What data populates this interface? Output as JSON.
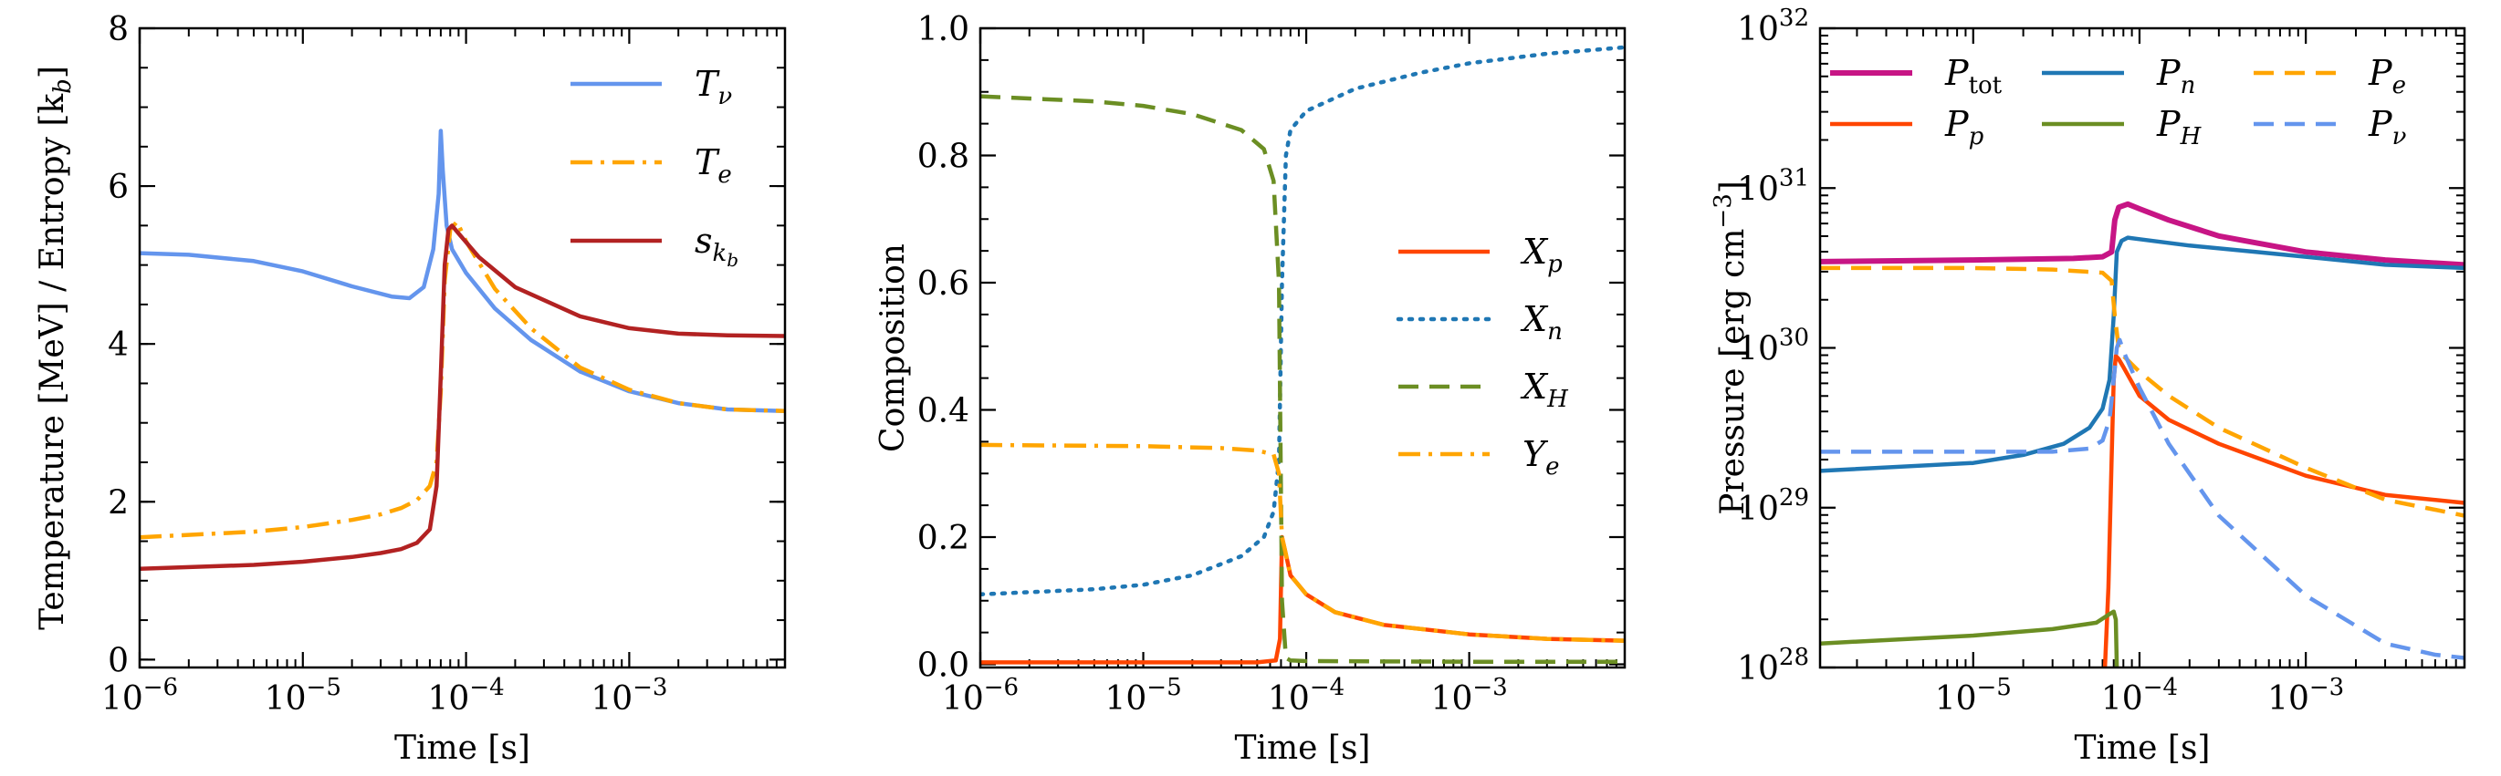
{
  "chart_data": [
    {
      "type": "line",
      "xlabel": "Time [s]",
      "ylabel": "Temperature [MeV] / Entropy [k",
      "ylabel_sub": "b",
      "ylabel_end": "]",
      "xscale": "log",
      "xlim": [
        1e-06,
        0.009
      ],
      "ylim": [
        -0.1,
        8
      ],
      "xticks": [
        {
          "v": 1e-06,
          "base": "10",
          "exp": "−6"
        },
        {
          "v": 1e-05,
          "base": "10",
          "exp": "−5"
        },
        {
          "v": 0.0001,
          "base": "10",
          "exp": "−4"
        },
        {
          "v": 0.001,
          "base": "10",
          "exp": "−3"
        }
      ],
      "yticks": [
        {
          "v": 0,
          "label": "0"
        },
        {
          "v": 2,
          "label": "2"
        },
        {
          "v": 4,
          "label": "4"
        },
        {
          "v": 6,
          "label": "6"
        },
        {
          "v": 8,
          "label": "8"
        }
      ],
      "legend_position": "upper right",
      "series": [
        {
          "name": "T",
          "sub": "ν",
          "color": "#6495ED",
          "dash": "solid",
          "x": [
            1e-06,
            2e-06,
            5e-06,
            1e-05,
            2e-05,
            3.5e-05,
            4.5e-05,
            5.5e-05,
            6.3e-05,
            6.8e-05,
            7e-05,
            7.2e-05,
            7.6e-05,
            8.2e-05,
            0.0001,
            0.00015,
            0.00025,
            0.0005,
            0.001,
            0.002,
            0.004,
            0.009
          ],
          "y": [
            5.15,
            5.13,
            5.05,
            4.92,
            4.73,
            4.6,
            4.58,
            4.72,
            5.2,
            5.9,
            6.7,
            6.2,
            5.5,
            5.2,
            4.9,
            4.45,
            4.05,
            3.65,
            3.4,
            3.25,
            3.17,
            3.15
          ]
        },
        {
          "name": "T",
          "sub": "e",
          "color": "#FFA500",
          "dash": "dashdot",
          "x": [
            1e-06,
            5e-06,
            1e-05,
            2e-05,
            3e-05,
            4e-05,
            5e-05,
            6e-05,
            6.6e-05,
            7e-05,
            7.4e-05,
            8e-05,
            8.8e-05,
            0.0001,
            0.00015,
            0.00025,
            0.0005,
            0.001,
            0.002,
            0.004,
            0.009
          ],
          "y": [
            1.55,
            1.62,
            1.68,
            1.77,
            1.84,
            1.92,
            2.02,
            2.2,
            2.5,
            3.4,
            4.8,
            5.45,
            5.55,
            5.3,
            4.7,
            4.2,
            3.7,
            3.42,
            3.25,
            3.17,
            3.15
          ]
        },
        {
          "name": "s",
          "sub": "k",
          "subsub": "b",
          "color": "#B22222",
          "dash": "solid",
          "x": [
            1e-06,
            5e-06,
            1e-05,
            2e-05,
            3e-05,
            4e-05,
            5e-05,
            6e-05,
            6.6e-05,
            7e-05,
            7.4e-05,
            7.8e-05,
            8.2e-05,
            9e-05,
            0.00012,
            0.0002,
            0.0005,
            0.001,
            0.002,
            0.004,
            0.009
          ],
          "y": [
            1.15,
            1.2,
            1.24,
            1.3,
            1.35,
            1.4,
            1.48,
            1.65,
            2.2,
            3.6,
            5.0,
            5.45,
            5.5,
            5.4,
            5.1,
            4.72,
            4.35,
            4.2,
            4.13,
            4.11,
            4.1
          ]
        }
      ]
    },
    {
      "type": "line",
      "xlabel": "Time [s]",
      "ylabel": "Composition",
      "xscale": "log",
      "xlim": [
        1e-06,
        0.009
      ],
      "ylim": [
        -0.005,
        1.0
      ],
      "xticks": [
        {
          "v": 1e-06,
          "base": "10",
          "exp": "−6"
        },
        {
          "v": 1e-05,
          "base": "10",
          "exp": "−5"
        },
        {
          "v": 0.0001,
          "base": "10",
          "exp": "−4"
        },
        {
          "v": 0.001,
          "base": "10",
          "exp": "−3"
        }
      ],
      "yticks": [
        {
          "v": 0,
          "label": "0.0"
        },
        {
          "v": 0.2,
          "label": "0.2"
        },
        {
          "v": 0.4,
          "label": "0.4"
        },
        {
          "v": 0.6,
          "label": "0.6"
        },
        {
          "v": 0.8,
          "label": "0.8"
        },
        {
          "v": 1.0,
          "label": "1.0"
        }
      ],
      "legend_position": "center right",
      "series": [
        {
          "name": "X",
          "sub": "p",
          "color": "#FF4500",
          "dash": "solid",
          "x": [
            1e-06,
            1e-05,
            5e-05,
            6.5e-05,
            6.9e-05,
            7.1e-05,
            7.4e-05,
            8e-05,
            0.0001,
            0.00015,
            0.0003,
            0.001,
            0.003,
            0.009
          ],
          "y": [
            0.003,
            0.003,
            0.003,
            0.006,
            0.04,
            0.2,
            0.18,
            0.14,
            0.11,
            0.082,
            0.062,
            0.047,
            0.04,
            0.037
          ]
        },
        {
          "name": "X",
          "sub": "n",
          "color": "#1F77B4",
          "dash": "dotted",
          "x": [
            1e-06,
            5e-06,
            1e-05,
            2e-05,
            4e-05,
            5.5e-05,
            6.3e-05,
            6.8e-05,
            7.1e-05,
            7.5e-05,
            8e-05,
            0.0001,
            0.0002,
            0.0005,
            0.001,
            0.003,
            0.009
          ],
          "y": [
            0.11,
            0.118,
            0.125,
            0.14,
            0.17,
            0.2,
            0.24,
            0.32,
            0.6,
            0.8,
            0.84,
            0.87,
            0.905,
            0.93,
            0.945,
            0.96,
            0.97
          ]
        },
        {
          "name": "X",
          "sub": "H",
          "color": "#6B8E23",
          "dash": "dashed",
          "x": [
            1e-06,
            5e-06,
            1e-05,
            2e-05,
            4e-05,
            5.5e-05,
            6.3e-05,
            6.8e-05,
            7.1e-05,
            7.5e-05,
            8e-05,
            0.0001,
            0.001,
            0.009
          ],
          "y": [
            0.893,
            0.885,
            0.878,
            0.865,
            0.84,
            0.81,
            0.76,
            0.6,
            0.1,
            0.01,
            0.006,
            0.005,
            0.004,
            0.004
          ]
        },
        {
          "name": "Y",
          "sub": "e",
          "color": "#FFA500",
          "dash": "dashdot",
          "x": [
            1e-06,
            1e-05,
            3e-05,
            5e-05,
            6.3e-05,
            6.8e-05,
            7.1e-05,
            7.4e-05,
            8e-05,
            0.0001,
            0.00015,
            0.0003,
            0.001,
            0.003,
            0.009
          ],
          "y": [
            0.345,
            0.343,
            0.34,
            0.336,
            0.33,
            0.3,
            0.2,
            0.18,
            0.14,
            0.11,
            0.082,
            0.062,
            0.047,
            0.04,
            0.037
          ]
        }
      ]
    },
    {
      "type": "line",
      "xlabel": "Time [s]",
      "ylabel": "Pressure [erg cm",
      "ylabel_sup": "−3",
      "ylabel_end": "]",
      "xscale": "log",
      "yscale": "log",
      "xlim": [
        1.2e-06,
        0.009
      ],
      "ylim": [
        1e+28,
        1e+32
      ],
      "xticks": [
        {
          "v": 1e-05,
          "base": "10",
          "exp": "−5"
        },
        {
          "v": 0.0001,
          "base": "10",
          "exp": "−4"
        },
        {
          "v": 0.001,
          "base": "10",
          "exp": "−3"
        }
      ],
      "yticks": [
        {
          "v": 28,
          "base": "10",
          "exp": "28"
        },
        {
          "v": 29,
          "base": "10",
          "exp": "29"
        },
        {
          "v": 30,
          "base": "10",
          "exp": "30"
        },
        {
          "v": 31,
          "base": "10",
          "exp": "31"
        },
        {
          "v": 32,
          "base": "10",
          "exp": "32"
        }
      ],
      "legend_position": "top",
      "series": [
        {
          "name": "P",
          "sub": "tot",
          "sub_upright": true,
          "color": "#C71585",
          "dash": "solid",
          "width": 6,
          "x": [
            1.2e-06,
            1e-05,
            4e-05,
            6e-05,
            6.8e-05,
            7.1e-05,
            7.5e-05,
            8.5e-05,
            0.0001,
            0.00015,
            0.0003,
            0.001,
            0.003,
            0.009
          ],
          "y": [
            30.54,
            30.55,
            30.56,
            30.57,
            30.6,
            30.8,
            30.88,
            30.9,
            30.87,
            30.8,
            30.7,
            30.6,
            30.55,
            30.52
          ]
        },
        {
          "name": "P",
          "sub": "p",
          "color": "#FF4500",
          "dash": "solid",
          "x": [
            6.2e-05,
            6.5e-05,
            6.8e-05,
            7e-05,
            7.2e-05,
            7.5e-05,
            8e-05,
            0.0001,
            0.00015,
            0.0003,
            0.001,
            0.003,
            0.009
          ],
          "y": [
            28.0,
            28.5,
            29.3,
            29.8,
            29.95,
            29.93,
            29.88,
            29.7,
            29.55,
            29.4,
            29.2,
            29.08,
            29.03
          ]
        },
        {
          "name": "P",
          "sub": "n",
          "color": "#1F77B4",
          "dash": "solid",
          "x": [
            1.2e-06,
            1e-05,
            2e-05,
            3.5e-05,
            5e-05,
            6e-05,
            6.6e-05,
            7e-05,
            7.3e-05,
            7.8e-05,
            8.5e-05,
            0.0001,
            0.0002,
            0.0005,
            0.001,
            0.003,
            0.009
          ],
          "y": [
            29.23,
            29.28,
            29.33,
            29.4,
            29.5,
            29.62,
            29.8,
            30.2,
            30.6,
            30.67,
            30.69,
            30.68,
            30.64,
            30.6,
            30.57,
            30.52,
            30.5
          ]
        },
        {
          "name": "P",
          "sub": "H",
          "color": "#6B8E23",
          "dash": "solid",
          "x": [
            1.2e-06,
            1e-05,
            3e-05,
            5.5e-05,
            6.5e-05,
            7e-05,
            7.2e-05,
            7.3e-05
          ],
          "y": [
            28.15,
            28.2,
            28.24,
            28.28,
            28.33,
            28.35,
            28.3,
            28.0
          ]
        },
        {
          "name": "P",
          "sub": "e",
          "color": "#FFA500",
          "dash": "dashed",
          "x": [
            1.2e-06,
            1e-05,
            3e-05,
            6e-05,
            6.8e-05,
            7.1e-05,
            7.5e-05,
            8e-05,
            0.0001,
            0.00015,
            0.0003,
            0.001,
            0.003,
            0.009
          ],
          "y": [
            30.5,
            30.5,
            30.49,
            30.47,
            30.42,
            30.2,
            30.0,
            29.95,
            29.85,
            29.7,
            29.5,
            29.25,
            29.05,
            28.95
          ]
        },
        {
          "name": "P",
          "sub": "ν",
          "color": "#6495ED",
          "dash": "dashed",
          "x": [
            1.2e-06,
            1e-05,
            3e-05,
            5e-05,
            6e-05,
            6.6e-05,
            7e-05,
            7.3e-05,
            7.6e-05,
            8e-05,
            0.0001,
            0.00015,
            0.0003,
            0.001,
            0.003,
            0.006,
            0.009
          ],
          "y": [
            29.35,
            29.35,
            29.35,
            29.37,
            29.42,
            29.55,
            29.8,
            30.0,
            30.05,
            29.98,
            29.75,
            29.4,
            28.95,
            28.45,
            28.15,
            28.08,
            28.06
          ]
        }
      ]
    }
  ]
}
